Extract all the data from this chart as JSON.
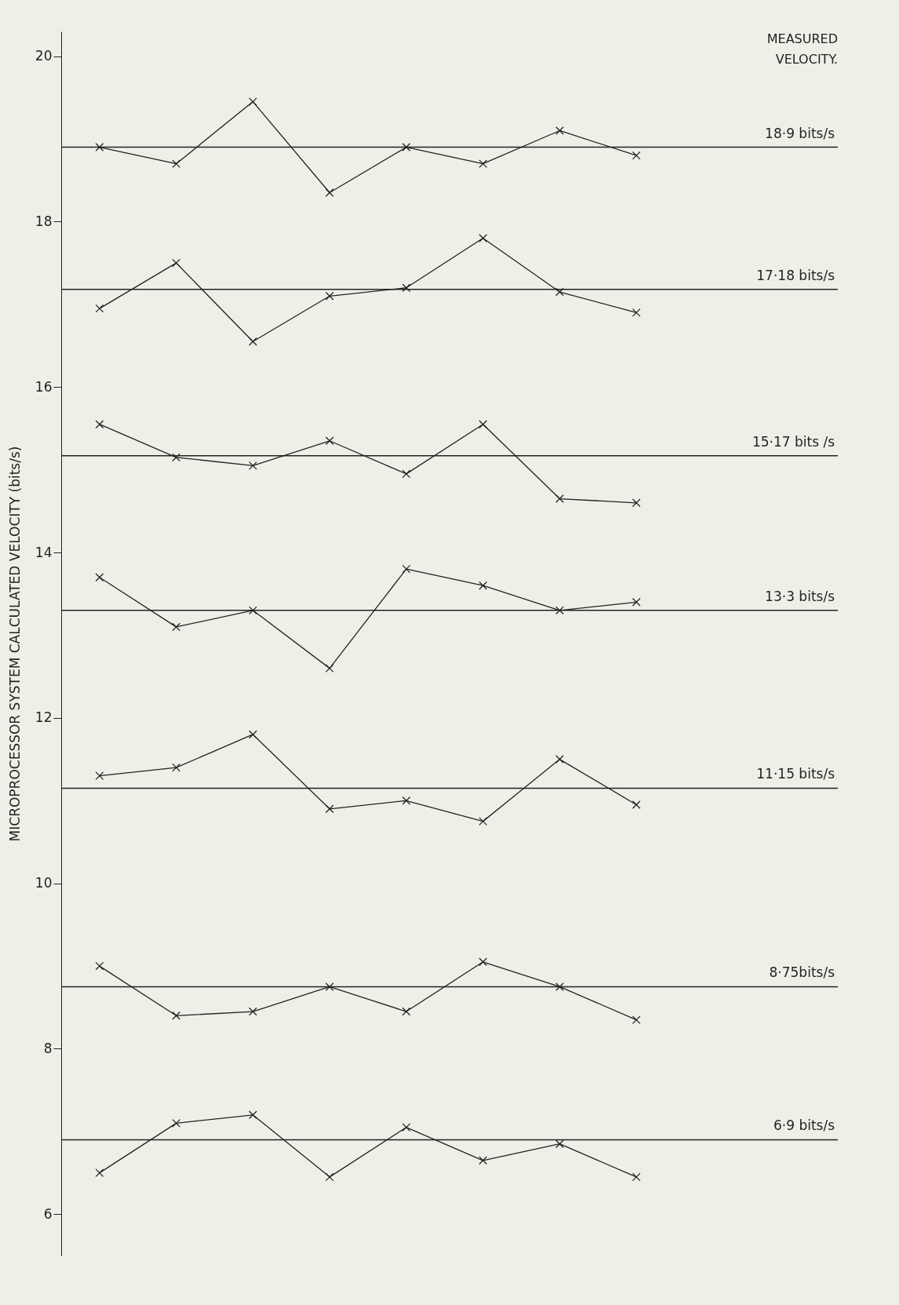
{
  "chart_data": {
    "type": "line",
    "ylabel": "MICROPROCESSOR SYSTEM CALCULATED VELOCITY (bits/s)",
    "categories": [
      null,
      null,
      null,
      null,
      null,
      null,
      null,
      null
    ],
    "series": [
      {
        "color": "#222222",
        "values": [
          18.9,
          18.7,
          19.45,
          18.35,
          18.9,
          18.7,
          19.1,
          18.8
        ]
      },
      {
        "color": "#222222",
        "values": [
          16.95,
          17.5,
          16.55,
          17.1,
          17.2,
          17.8,
          17.15,
          16.9
        ]
      },
      {
        "color": "#222222",
        "values": [
          15.55,
          15.15,
          15.05,
          15.35,
          14.95,
          15.55,
          14.65,
          14.6
        ]
      },
      {
        "color": "#222222",
        "values": [
          13.7,
          13.1,
          13.3,
          12.6,
          13.8,
          13.6,
          13.3,
          13.4
        ]
      },
      {
        "color": "#222222",
        "values": [
          11.3,
          11.4,
          11.8,
          10.9,
          11.0,
          10.75,
          11.5,
          10.95
        ]
      },
      {
        "color": "#222222",
        "values": [
          9.0,
          8.4,
          8.45,
          8.75,
          8.45,
          9.05,
          8.75,
          8.35
        ]
      },
      {
        "color": "#222222",
        "values": [
          6.5,
          7.1,
          7.2,
          6.45,
          7.05,
          6.65,
          6.85,
          6.45
        ]
      }
    ],
    "ref_lines": [
      {
        "axis": "y",
        "value": 18.9,
        "label": "18·9 bits/s"
      },
      {
        "axis": "y",
        "value": 17.18,
        "label": "17·18 bits/s"
      },
      {
        "axis": "y",
        "value": 15.17,
        "label": "15·17 bits /s"
      },
      {
        "axis": "y",
        "value": 13.3,
        "label": "13·3 bits/s"
      },
      {
        "axis": "y",
        "value": 11.15,
        "label": "11·15 bits/s"
      },
      {
        "axis": "y",
        "value": 8.75,
        "label": "8·75bits/s"
      },
      {
        "axis": "y",
        "value": 6.9,
        "label": "6·9 bits/s"
      }
    ],
    "annotations": [
      "MEASURED VELOCITY."
    ],
    "ylim": [
      5.5,
      20.3
    ],
    "yticks": [
      6,
      8,
      10,
      12,
      14,
      16,
      18,
      20
    ],
    "marker": "cross",
    "line_style": "solid",
    "grid": false,
    "tick_labels": "y"
  }
}
